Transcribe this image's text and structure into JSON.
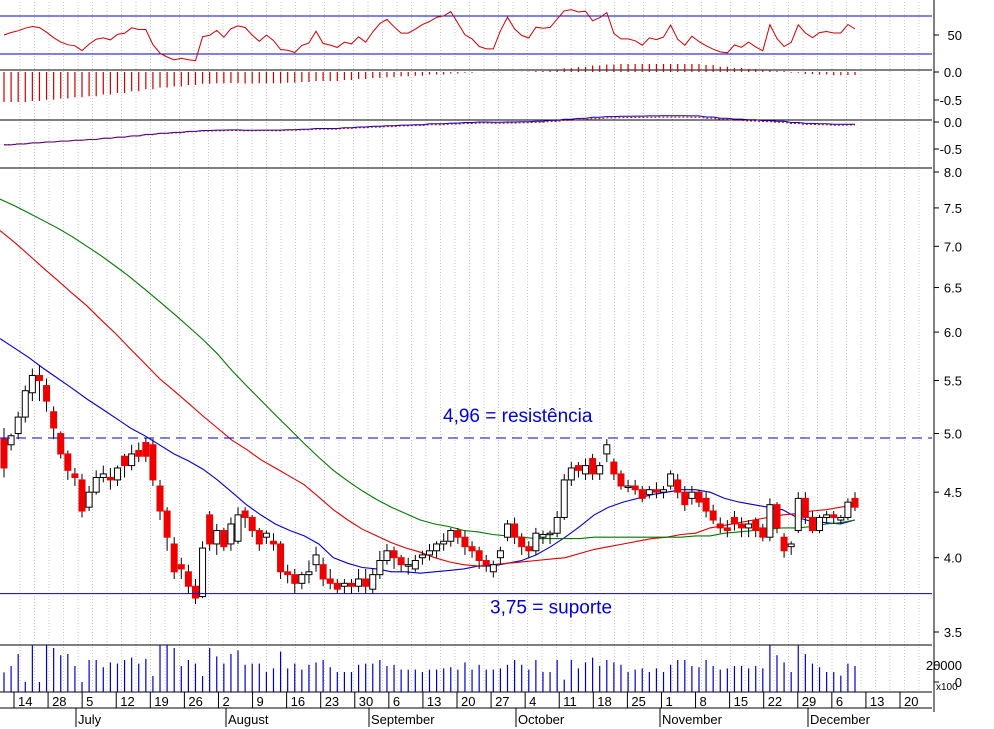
{
  "chart_data": {
    "type": "candlestick",
    "y_axis_main": {
      "scale": "log",
      "range": [
        3.4,
        8.1
      ],
      "ticks": [
        "8.0",
        "7.5",
        "7.0",
        "6.5",
        "6.0",
        "5.5",
        "5.0",
        "4.5",
        "4.0",
        "3.5"
      ]
    },
    "x_labels": {
      "days": [
        "14",
        "28",
        "5",
        "12",
        "19",
        "26",
        "2",
        "9",
        "16",
        "23",
        "30",
        "6",
        "13",
        "20",
        "27",
        "4",
        "11",
        "18",
        "25",
        "1",
        "8",
        "15",
        "22",
        "29",
        "6",
        "13",
        "20"
      ],
      "months": [
        "July",
        "August",
        "September",
        "October",
        "November",
        "December"
      ]
    },
    "annotations": {
      "resistance": {
        "label": "4,96 = resistência",
        "value": 4.96
      },
      "support": {
        "label": "3,75 = suporte",
        "value": 3.75
      }
    },
    "oscillator_panel": {
      "ticks": [
        "50",
        "0.0"
      ],
      "upper_line": 80,
      "lower_line": 20
    },
    "histogram_panel": {
      "ticks": [
        "0.0",
        "-0.5"
      ]
    },
    "macd_panel": {
      "ticks": [
        "0.0",
        "-0.5"
      ]
    },
    "volume_panel": {
      "ticks": [
        "20000",
        "0"
      ],
      "unit": "x100"
    },
    "candles": [
      {
        "d": "Jul 9",
        "o": 4.95,
        "h": 5.05,
        "c": 4.7,
        "l": 4.62
      },
      {
        "d": "Jul 10",
        "o": 4.9,
        "h": 5.0,
        "c": 4.98,
        "l": 4.85
      },
      {
        "d": "Jul 11",
        "o": 5.0,
        "h": 5.2,
        "c": 5.15,
        "l": 4.95
      },
      {
        "d": "Jul 12",
        "o": 5.15,
        "h": 5.45,
        "c": 5.4,
        "l": 5.1
      },
      {
        "d": "Jul 13",
        "o": 5.38,
        "h": 5.62,
        "c": 5.55,
        "l": 5.3
      },
      {
        "d": "Jul 14",
        "o": 5.55,
        "h": 5.65,
        "c": 5.5,
        "l": 5.3
      },
      {
        "d": "Jul 15",
        "o": 5.45,
        "h": 5.52,
        "c": 5.3,
        "l": 5.2
      },
      {
        "d": "Jul 16",
        "o": 5.2,
        "h": 5.25,
        "c": 5.05,
        "l": 4.95
      },
      {
        "d": "Jul 17",
        "o": 5.0,
        "h": 5.02,
        "c": 4.82,
        "l": 4.78
      },
      {
        "d": "Jul 18",
        "o": 4.82,
        "h": 4.85,
        "c": 4.68,
        "l": 4.6
      },
      {
        "d": "Jul 19",
        "o": 4.65,
        "h": 4.7,
        "c": 4.62,
        "l": 4.55
      },
      {
        "d": "Jul 20",
        "o": 4.6,
        "h": 4.65,
        "c": 4.35,
        "l": 4.3
      },
      {
        "d": "Jul 21",
        "o": 4.38,
        "h": 4.55,
        "c": 4.5,
        "l": 4.35
      },
      {
        "d": "Jul 22",
        "o": 4.5,
        "h": 4.68,
        "c": 4.62,
        "l": 4.48
      },
      {
        "d": "Jul 23",
        "o": 4.62,
        "h": 4.72,
        "c": 4.65,
        "l": 4.58
      },
      {
        "d": "Jul 24",
        "o": 4.62,
        "h": 4.7,
        "c": 4.6,
        "l": 4.52
      },
      {
        "d": "Jul 25",
        "o": 4.6,
        "h": 4.72,
        "c": 4.7,
        "l": 4.55
      },
      {
        "d": "Jul 26",
        "o": 4.8,
        "h": 4.82,
        "c": 4.72,
        "l": 4.62
      },
      {
        "d": "Jul 27",
        "o": 4.72,
        "h": 4.9,
        "c": 4.82,
        "l": 4.68
      },
      {
        "d": "Jul 28",
        "o": 4.85,
        "h": 4.92,
        "c": 4.8,
        "l": 4.75
      },
      {
        "d": "Jul 29",
        "o": 4.92,
        "h": 4.96,
        "c": 4.8,
        "l": 4.75
      },
      {
        "d": "Jul 30",
        "o": 4.9,
        "h": 4.95,
        "c": 4.6,
        "l": 4.55
      },
      {
        "d": "Jul 31",
        "o": 4.55,
        "h": 4.6,
        "c": 4.35,
        "l": 4.28
      },
      {
        "d": "Aug 1",
        "o": 4.35,
        "h": 4.38,
        "c": 4.15,
        "l": 4.05
      },
      {
        "d": "Aug 2",
        "o": 4.1,
        "h": 4.15,
        "c": 3.9,
        "l": 3.85
      },
      {
        "d": "Aug 3",
        "o": 3.95,
        "h": 4.0,
        "c": 3.92,
        "l": 3.85
      },
      {
        "d": "Aug 4",
        "o": 3.9,
        "h": 3.95,
        "c": 3.8,
        "l": 3.75
      },
      {
        "d": "Aug 5",
        "o": 3.8,
        "h": 3.85,
        "c": 3.72,
        "l": 3.68
      },
      {
        "d": "Aug 6",
        "o": 3.73,
        "h": 4.12,
        "c": 4.07,
        "l": 3.72
      },
      {
        "d": "Aug 7",
        "o": 4.32,
        "h": 4.35,
        "c": 4.1,
        "l": 4.05
      },
      {
        "d": "Aug 8",
        "o": 4.1,
        "h": 4.25,
        "c": 4.2,
        "l": 4.02
      },
      {
        "d": "Aug 9",
        "o": 4.2,
        "h": 4.22,
        "c": 4.08,
        "l": 4.05
      },
      {
        "d": "Aug 10",
        "o": 4.1,
        "h": 4.3,
        "c": 4.25,
        "l": 4.05
      },
      {
        "d": "Aug 11",
        "o": 4.12,
        "h": 4.38,
        "c": 4.32,
        "l": 4.1
      },
      {
        "d": "Aug 12",
        "o": 4.35,
        "h": 4.38,
        "c": 4.3,
        "l": 4.22
      },
      {
        "d": "Aug 13",
        "o": 4.3,
        "h": 4.32,
        "c": 4.2,
        "l": 4.15
      },
      {
        "d": "Aug 14",
        "o": 4.2,
        "h": 4.22,
        "c": 4.1,
        "l": 4.05
      },
      {
        "d": "Aug 15",
        "o": 4.15,
        "h": 4.2,
        "c": 4.18,
        "l": 4.1
      },
      {
        "d": "Aug 16",
        "o": 4.12,
        "h": 4.18,
        "c": 4.1,
        "l": 4.05
      },
      {
        "d": "Aug 17",
        "o": 4.1,
        "h": 4.12,
        "c": 3.9,
        "l": 3.85
      },
      {
        "d": "Aug 18",
        "o": 3.9,
        "h": 3.95,
        "c": 3.88,
        "l": 3.82
      },
      {
        "d": "Aug 19",
        "o": 3.88,
        "h": 3.92,
        "c": 3.82,
        "l": 3.75
      },
      {
        "d": "Aug 20",
        "o": 3.82,
        "h": 3.9,
        "c": 3.88,
        "l": 3.78
      },
      {
        "d": "Aug 21",
        "o": 3.88,
        "h": 3.98,
        "c": 3.9,
        "l": 3.82
      },
      {
        "d": "Aug 22",
        "o": 3.95,
        "h": 4.08,
        "c": 4.02,
        "l": 3.9
      },
      {
        "d": "Aug 23",
        "o": 3.95,
        "h": 4.0,
        "c": 3.85,
        "l": 3.8
      },
      {
        "d": "Aug 24",
        "o": 3.85,
        "h": 3.92,
        "c": 3.82,
        "l": 3.78
      },
      {
        "d": "Aug 25",
        "o": 3.82,
        "h": 3.85,
        "c": 3.78,
        "l": 3.75
      },
      {
        "d": "Aug 26",
        "o": 3.8,
        "h": 3.85,
        "c": 3.82,
        "l": 3.75
      },
      {
        "d": "Aug 27",
        "o": 3.82,
        "h": 3.85,
        "c": 3.8,
        "l": 3.75
      },
      {
        "d": "Aug 28",
        "o": 3.8,
        "h": 3.92,
        "c": 3.85,
        "l": 3.76
      },
      {
        "d": "Aug 29",
        "o": 3.85,
        "h": 3.92,
        "c": 3.8,
        "l": 3.75
      },
      {
        "d": "Aug 30",
        "o": 3.78,
        "h": 3.92,
        "c": 3.88,
        "l": 3.75
      },
      {
        "d": "Aug 31",
        "o": 3.88,
        "h": 4.05,
        "c": 3.98,
        "l": 3.85
      },
      {
        "d": "Sep 1",
        "o": 3.98,
        "h": 4.1,
        "c": 4.05,
        "l": 3.95
      },
      {
        "d": "Sep 2",
        "o": 4.05,
        "h": 4.08,
        "c": 4.0,
        "l": 3.92
      },
      {
        "d": "Sep 3",
        "o": 4.0,
        "h": 4.02,
        "c": 3.95,
        "l": 3.9
      },
      {
        "d": "Sep 4",
        "o": 3.95,
        "h": 4.0,
        "c": 3.95,
        "l": 3.88
      },
      {
        "d": "Sep 5",
        "o": 3.92,
        "h": 4.02,
        "c": 3.98,
        "l": 3.9
      },
      {
        "d": "Sep 6",
        "o": 4.0,
        "h": 4.05,
        "c": 4.02,
        "l": 3.95
      },
      {
        "d": "Sep 7",
        "o": 4.02,
        "h": 4.1,
        "c": 4.05,
        "l": 3.98
      },
      {
        "d": "Sep 8",
        "o": 4.05,
        "h": 4.12,
        "c": 4.1,
        "l": 4.0
      },
      {
        "d": "Sep 9",
        "o": 4.1,
        "h": 4.18,
        "c": 4.12,
        "l": 4.05
      },
      {
        "d": "Sep 10",
        "o": 4.12,
        "h": 4.22,
        "c": 4.2,
        "l": 4.08
      },
      {
        "d": "Sep 11",
        "o": 4.2,
        "h": 4.22,
        "c": 4.15,
        "l": 4.1
      },
      {
        "d": "Sep 12",
        "o": 4.15,
        "h": 4.2,
        "c": 4.08,
        "l": 4.02
      },
      {
        "d": "Sep 13",
        "o": 4.08,
        "h": 4.12,
        "c": 4.05,
        "l": 4.0
      },
      {
        "d": "Sep 14",
        "o": 4.05,
        "h": 4.08,
        "c": 3.98,
        "l": 3.92
      },
      {
        "d": "Sep 15",
        "o": 3.98,
        "h": 4.02,
        "c": 3.95,
        "l": 3.9
      },
      {
        "d": "Sep 16",
        "o": 3.9,
        "h": 3.98,
        "c": 3.95,
        "l": 3.86
      },
      {
        "d": "Sep 17",
        "o": 4.0,
        "h": 4.08,
        "c": 4.05,
        "l": 3.95
      },
      {
        "d": "Sep 18",
        "o": 4.15,
        "h": 4.28,
        "c": 4.25,
        "l": 4.12
      },
      {
        "d": "Sep 19",
        "o": 4.25,
        "h": 4.3,
        "c": 4.15,
        "l": 4.1
      },
      {
        "d": "Sep 20",
        "o": 4.15,
        "h": 4.18,
        "c": 4.08,
        "l": 4.02
      },
      {
        "d": "Sep 21",
        "o": 4.08,
        "h": 4.12,
        "c": 4.05,
        "l": 4.0
      },
      {
        "d": "Sep 22",
        "o": 4.05,
        "h": 4.22,
        "c": 4.18,
        "l": 4.02
      },
      {
        "d": "Sep 23",
        "o": 4.15,
        "h": 4.2,
        "c": 4.17,
        "l": 4.1
      },
      {
        "d": "Sep 24",
        "o": 4.17,
        "h": 4.2,
        "c": 4.18,
        "l": 4.1
      },
      {
        "d": "Sep 25",
        "o": 4.18,
        "h": 4.35,
        "c": 4.3,
        "l": 4.15
      },
      {
        "d": "Sep 26",
        "o": 4.3,
        "h": 4.65,
        "c": 4.6,
        "l": 4.28
      },
      {
        "d": "Sep 27",
        "o": 4.6,
        "h": 4.75,
        "c": 4.7,
        "l": 4.55
      },
      {
        "d": "Sep 28",
        "o": 4.72,
        "h": 4.75,
        "c": 4.68,
        "l": 4.62
      },
      {
        "d": "Sep 29",
        "o": 4.65,
        "h": 4.78,
        "c": 4.72,
        "l": 4.6
      },
      {
        "d": "Sep 30",
        "o": 4.78,
        "h": 4.82,
        "c": 4.65,
        "l": 4.6
      },
      {
        "d": "Oct 1",
        "o": 4.65,
        "h": 4.75,
        "c": 4.72,
        "l": 4.6
      },
      {
        "d": "Oct 2",
        "o": 4.82,
        "h": 4.95,
        "c": 4.9,
        "l": 4.75
      },
      {
        "d": "Oct 3",
        "o": 4.75,
        "h": 4.78,
        "c": 4.65,
        "l": 4.6
      },
      {
        "d": "Oct 4",
        "o": 4.65,
        "h": 4.68,
        "c": 4.55,
        "l": 4.52
      },
      {
        "d": "Oct 5",
        "o": 4.55,
        "h": 4.6,
        "c": 4.55,
        "l": 4.5
      },
      {
        "d": "Oct 6",
        "o": 4.55,
        "h": 4.6,
        "c": 4.52,
        "l": 4.48
      },
      {
        "d": "Oct 7",
        "o": 4.52,
        "h": 4.55,
        "c": 4.45,
        "l": 4.42
      },
      {
        "d": "Oct 8",
        "o": 4.48,
        "h": 4.55,
        "c": 4.52,
        "l": 4.45
      },
      {
        "d": "Oct 9",
        "o": 4.52,
        "h": 4.58,
        "c": 4.5,
        "l": 4.45
      },
      {
        "d": "Oct 10",
        "o": 4.5,
        "h": 4.55,
        "c": 4.52,
        "l": 4.45
      },
      {
        "d": "Oct 11",
        "o": 4.55,
        "h": 4.68,
        "c": 4.65,
        "l": 4.52
      },
      {
        "d": "Oct 12",
        "o": 4.6,
        "h": 4.65,
        "c": 4.5,
        "l": 4.45
      },
      {
        "d": "Oct 13",
        "o": 4.5,
        "h": 4.55,
        "c": 4.4,
        "l": 4.35
      },
      {
        "d": "Oct 14",
        "o": 4.45,
        "h": 4.55,
        "c": 4.5,
        "l": 4.4
      },
      {
        "d": "Oct 15",
        "o": 4.5,
        "h": 4.52,
        "c": 4.42,
        "l": 4.38
      },
      {
        "d": "Oct 16",
        "o": 4.45,
        "h": 4.5,
        "c": 4.35,
        "l": 4.3
      },
      {
        "d": "Oct 17",
        "o": 4.35,
        "h": 4.4,
        "c": 4.28,
        "l": 4.25
      },
      {
        "d": "Oct 18",
        "o": 4.25,
        "h": 4.3,
        "c": 4.22,
        "l": 4.18
      },
      {
        "d": "Oct 19",
        "o": 4.22,
        "h": 4.28,
        "c": 4.2,
        "l": 4.15
      },
      {
        "d": "Oct 20",
        "o": 4.3,
        "h": 4.35,
        "c": 4.25,
        "l": 4.2
      },
      {
        "d": "Oct 21",
        "o": 4.25,
        "h": 4.3,
        "c": 4.22,
        "l": 4.15
      },
      {
        "d": "Oct 22",
        "o": 4.22,
        "h": 4.28,
        "c": 4.25,
        "l": 4.15
      },
      {
        "d": "Oct 23",
        "o": 4.28,
        "h": 4.3,
        "c": 4.2,
        "l": 4.15
      },
      {
        "d": "Oct 24",
        "o": 4.22,
        "h": 4.25,
        "c": 4.15,
        "l": 4.12
      },
      {
        "d": "Oct 25",
        "o": 4.15,
        "h": 4.45,
        "c": 4.4,
        "l": 4.12
      },
      {
        "d": "Oct 26",
        "o": 4.4,
        "h": 4.42,
        "c": 4.22,
        "l": 4.18
      },
      {
        "d": "Oct 27",
        "o": 4.15,
        "h": 4.18,
        "c": 4.05,
        "l": 4.0
      },
      {
        "d": "Oct 28",
        "o": 4.08,
        "h": 4.12,
        "c": 4.1,
        "l": 4.02
      },
      {
        "d": "Oct 29",
        "o": 4.2,
        "h": 4.5,
        "c": 4.45,
        "l": 4.18
      },
      {
        "d": "Oct 30",
        "o": 4.45,
        "h": 4.5,
        "c": 4.3,
        "l": 4.25
      },
      {
        "d": "Oct 31",
        "o": 4.3,
        "h": 4.35,
        "c": 4.2,
        "l": 4.18
      },
      {
        "d": "Nov 1",
        "o": 4.2,
        "h": 4.32,
        "c": 4.3,
        "l": 4.18
      },
      {
        "d": "Nov 2",
        "o": 4.3,
        "h": 4.35,
        "c": 4.32,
        "l": 4.25
      },
      {
        "d": "Nov 3",
        "o": 4.32,
        "h": 4.35,
        "c": 4.3,
        "l": 4.25
      },
      {
        "d": "Nov 4",
        "o": 4.28,
        "h": 4.32,
        "c": 4.3,
        "l": 4.25
      },
      {
        "d": "Nov 5",
        "o": 4.3,
        "h": 4.45,
        "c": 4.42,
        "l": 4.28
      },
      {
        "d": "Nov 6",
        "o": 4.45,
        "h": 4.5,
        "c": 4.38,
        "l": 4.35
      }
    ],
    "moving_averages": [
      {
        "color": "#0000cc",
        "values": [
          5.93,
          5.83,
          5.73,
          5.62,
          5.52,
          5.42,
          5.32,
          5.23,
          5.14,
          5.05,
          4.98,
          4.9,
          4.82,
          4.76,
          4.69,
          4.6,
          4.5,
          4.4,
          4.32,
          4.25,
          4.2,
          4.16,
          4.1,
          4.0,
          3.96,
          3.93,
          3.92,
          3.9,
          3.9,
          3.89,
          3.9,
          3.91,
          3.92,
          3.94,
          3.94,
          3.96,
          3.98,
          4.02,
          4.08,
          4.15,
          4.23,
          4.32,
          4.38,
          4.42,
          4.45,
          4.48,
          4.5,
          4.52,
          4.52,
          4.5,
          4.45,
          4.42,
          4.4,
          4.38,
          4.36,
          4.3,
          4.27,
          4.26,
          4.25,
          4.28
        ]
      },
      {
        "color": "#dd0000",
        "values": [
          7.2,
          7.05,
          6.89,
          6.73,
          6.58,
          6.43,
          6.29,
          6.13,
          5.98,
          5.82,
          5.67,
          5.52,
          5.4,
          5.28,
          5.16,
          5.05,
          4.94,
          4.86,
          4.77,
          4.7,
          4.63,
          4.56,
          4.46,
          4.36,
          4.28,
          4.21,
          4.16,
          4.11,
          4.07,
          4.04,
          4.0,
          3.97,
          3.95,
          3.94,
          3.95,
          3.96,
          3.97,
          3.98,
          3.99,
          4.0,
          4.03,
          4.06,
          4.08,
          4.1,
          4.12,
          4.14,
          4.15,
          4.17,
          4.18,
          4.22,
          4.24,
          4.26,
          4.28,
          4.3,
          4.32,
          4.33,
          4.35,
          4.36,
          4.38,
          4.4
        ]
      },
      {
        "color": "#007700",
        "values": [
          7.62,
          7.53,
          7.43,
          7.33,
          7.23,
          7.12,
          7.0,
          6.88,
          6.75,
          6.62,
          6.48,
          6.34,
          6.2,
          6.06,
          5.92,
          5.77,
          5.6,
          5.45,
          5.31,
          5.17,
          5.04,
          4.91,
          4.79,
          4.68,
          4.59,
          4.51,
          4.44,
          4.38,
          4.33,
          4.28,
          4.25,
          4.23,
          4.2,
          4.19,
          4.17,
          4.16,
          4.15,
          4.14,
          4.14,
          4.14,
          4.14,
          4.15,
          4.15,
          4.15,
          4.15,
          4.15,
          4.15,
          4.15,
          4.16,
          4.16,
          4.18,
          4.19,
          4.2,
          4.21,
          4.22,
          4.22,
          4.23,
          4.25,
          4.26,
          4.28
        ]
      }
    ]
  }
}
